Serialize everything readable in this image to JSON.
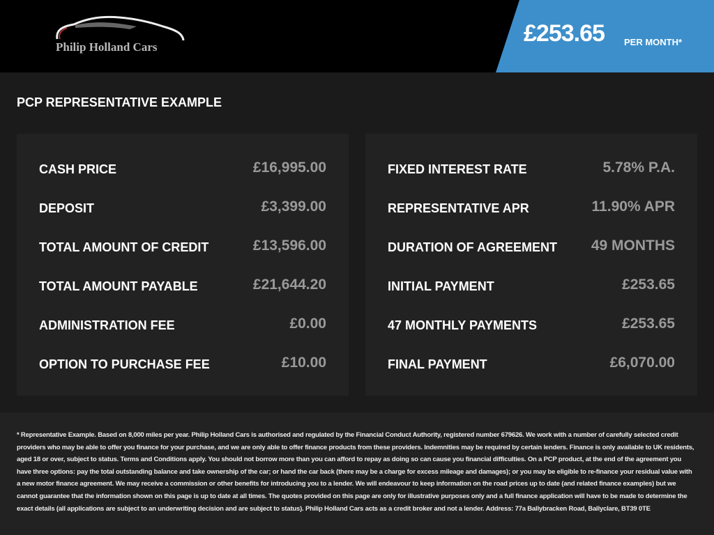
{
  "header": {
    "brand": "Philip Holland Cars",
    "price": "£253.65",
    "price_suffix": "PER MONTH*",
    "accent": "#3d8fcb"
  },
  "section_title": "PCP REPRESENTATIVE EXAMPLE",
  "left_rows": [
    {
      "label": "CASH PRICE",
      "value": "£16,995.00"
    },
    {
      "label": "DEPOSIT",
      "value": "£3,399.00"
    },
    {
      "label": "TOTAL AMOUNT OF CREDIT",
      "value": "£13,596.00"
    },
    {
      "label": "TOTAL AMOUNT PAYABLE",
      "value": "£21,644.20"
    },
    {
      "label": "ADMINISTRATION FEE",
      "value": "£0.00"
    },
    {
      "label": "OPTION TO PURCHASE FEE",
      "value": "£10.00"
    }
  ],
  "right_rows": [
    {
      "label": "FIXED INTEREST RATE",
      "value": "5.78% P.A."
    },
    {
      "label": "REPRESENTATIVE APR",
      "value": "11.90% APR"
    },
    {
      "label": "DURATION OF AGREEMENT",
      "value": "49 MONTHS"
    },
    {
      "label": "INITIAL PAYMENT",
      "value": "£253.65"
    },
    {
      "label": "47 MONTHLY PAYMENTS",
      "value": "£253.65"
    },
    {
      "label": "FINAL PAYMENT",
      "value": "£6,070.00"
    }
  ],
  "disclaimer_lines": [
    "* Representative Example. Based on 8,000 miles per year. Philip Holland Cars is authorised and regulated by the Financial Conduct Authority, registered number 679626. We work with a number of carefully selected",
    "credit providers who may be able to offer you finance for your purchase, and we are only able to offer finance products from these providers. Indemnities may be required by certain lenders. Finance is only",
    "available to UK residents, aged 18 or over, subject to status. Terms and Conditions apply. You should not borrow more than you can afford to repay as doing so can cause you financial difficulties. On a PCP",
    "product, at the end of the agreement you have three options: pay the total outstanding balance and take ownership of the car; or hand the car back (there may be a charge for excess mileage and damages); or you",
    "may be eligible to re-finance your residual value with a new motor finance agreement. We may receive a commission or other benefits for introducing you to a lender. We will endeavour to keep information on the",
    "road prices up to date (and related finance examples) but we cannot guarantee that the information shown on this page is up to date at all times. The quotes provided on this page are only for illustrative",
    "purposes only and a full finance application will have to be made to determine the exact details (all applications are subject to an underwriting decision and are subject to status). Philip Holland Cars acts as",
    "a credit broker and not a lender. Address: 77a Ballybracken Road, Ballyclare, BT39 0TE"
  ]
}
